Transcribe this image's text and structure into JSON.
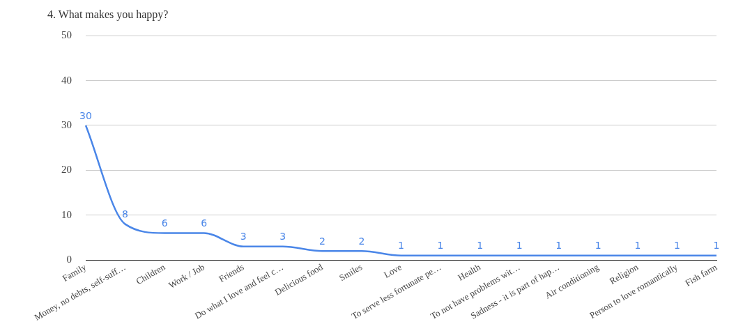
{
  "chart_data": {
    "type": "line",
    "title": "4. What makes you happy?",
    "categories": [
      "Family",
      "Money, no debts, self-suff…",
      "Children",
      "Work / Job",
      "Friends",
      "Do what I love and feel c…",
      "Delicious food",
      "Smiles",
      "Love",
      "To serve less fortunate pe…",
      "Health",
      "To not have problems wit…",
      "Sadness - it is part of hap…",
      "Air conditioning",
      "Religion",
      "Person to love romantically",
      "Fish farm"
    ],
    "values": [
      30,
      8,
      6,
      6,
      3,
      3,
      2,
      2,
      1,
      1,
      1,
      1,
      1,
      1,
      1,
      1,
      1
    ],
    "color": "#4a86e8",
    "ylim": [
      0,
      50
    ],
    "yticks": [
      0,
      10,
      20,
      30,
      40,
      50
    ],
    "grid": "y",
    "legend": false,
    "marker": "none",
    "data_labels": true
  }
}
